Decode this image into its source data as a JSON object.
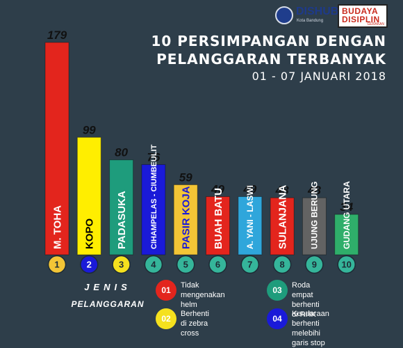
{
  "logo": {
    "dishub": "DISHUB",
    "dishub_sub": "Kota Bandung",
    "budaya_line1": "BUDAYA",
    "budaya_line2": "DISIPLIN",
    "budaya_line3": "GERAKAN"
  },
  "title": {
    "line1": "10 PERSIMPANGAN DENGAN",
    "line2": "PELANGGARAN TERBANYAK",
    "line3": "01 - 07 JANUARI 2018"
  },
  "legend": {
    "heading1": "JENIS",
    "heading2": "PELANGGARAN",
    "items": [
      {
        "badge": "01",
        "text": "Tidak mengenakan\nhelm",
        "color": "#e3251d"
      },
      {
        "badge": "02",
        "text": "Berhenti\ndi zebra cross",
        "color": "#f5e11e"
      },
      {
        "badge": "03",
        "text": "Roda empat\nberhenti di RHK",
        "color": "#1e9c7c"
      },
      {
        "badge": "04",
        "text": "Kendaraan berhenti\nmelebihi garis stop",
        "color": "#1a1ad8"
      }
    ]
  },
  "chart_data": {
    "type": "bar",
    "categories": [
      "M. TOHA",
      "KOPO",
      "PADASUKA",
      "CIHAMPELAS - CIUMBEULIT",
      "PASIR KOJA",
      "BUAH BATU",
      "A. YANI - LASWI",
      "SULANJANA",
      "UJUNG BERUNG",
      "GUDANG UTARA"
    ],
    "ranks": [
      "1",
      "2",
      "3",
      "4",
      "5",
      "6",
      "7",
      "8",
      "9",
      "10"
    ],
    "values": [
      179,
      99,
      80,
      76,
      59,
      49,
      49,
      48,
      48,
      34
    ],
    "value_labels": [
      "179",
      "99",
      "80",
      "76",
      "59",
      "49",
      "49",
      "48",
      "48",
      "34"
    ],
    "bar_colors": [
      "#e3251d",
      "#ffee00",
      "#1e9c7c",
      "#1a1ad8",
      "#f3c536",
      "#e3251d",
      "#2fa6db",
      "#e3251d",
      "#636363",
      "#2fae6a"
    ],
    "badge_colors": [
      "#f3c536",
      "#1a1ad8",
      "#f5e11e",
      "#35b59a",
      "#35b59a",
      "#35b59a",
      "#35b59a",
      "#35b59a",
      "#35b59a",
      "#35b59a"
    ],
    "label_colors": [
      "#ffffff",
      "#000000",
      "#ffffff",
      "#ffffff",
      "#1a1ad8",
      "#ffffff",
      "#ffffff",
      "#ffffff",
      "#ffffff",
      "#ffffff"
    ]
  }
}
